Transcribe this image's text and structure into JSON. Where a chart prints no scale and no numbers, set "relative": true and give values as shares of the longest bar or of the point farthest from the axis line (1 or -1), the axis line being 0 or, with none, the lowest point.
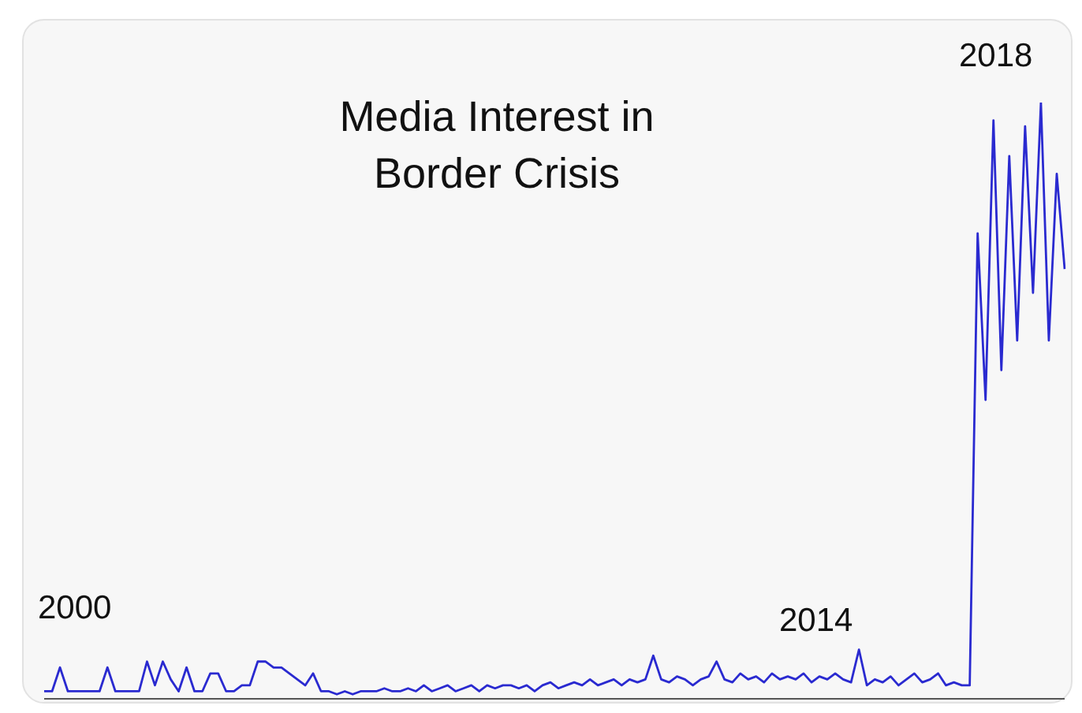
{
  "chart_data": {
    "type": "line",
    "title": "Media Interest in Border Crisis",
    "relative": true,
    "annotations": [
      "2000",
      "2014",
      "2018"
    ],
    "categories": [
      null,
      null,
      null,
      null,
      null,
      null,
      null,
      null,
      null,
      null,
      null,
      null,
      null,
      null,
      null,
      null,
      null,
      null,
      null,
      null,
      null,
      null,
      null,
      null,
      null,
      null,
      null,
      null,
      null,
      null,
      null,
      null,
      null,
      null,
      null,
      null,
      null,
      null,
      null,
      null,
      null,
      null,
      null,
      null,
      null,
      null,
      null,
      null,
      null,
      null,
      null,
      null,
      null,
      null,
      null,
      null,
      null,
      null,
      null,
      null,
      null,
      null,
      null,
      null,
      null,
      null,
      null,
      null,
      null,
      null,
      null,
      null,
      null,
      null,
      null,
      null,
      null,
      null,
      null,
      null,
      null,
      null,
      null,
      null,
      null,
      null,
      null,
      null,
      null,
      null,
      null,
      null,
      null,
      null,
      null,
      null,
      null,
      null,
      null,
      null,
      null,
      null,
      null,
      null,
      null,
      null,
      null,
      null,
      null,
      null,
      null,
      null,
      null,
      null,
      null,
      null,
      null,
      null,
      null,
      null,
      null,
      null,
      null,
      null,
      null,
      null,
      null,
      null,
      null,
      null
    ],
    "series": [
      {
        "color": "#2a2ad0",
        "values": [
          0.01,
          0.01,
          0.05,
          0.01,
          0.01,
          0.01,
          0.01,
          0.01,
          0.05,
          0.01,
          0.01,
          0.01,
          0.01,
          0.06,
          0.02,
          0.06,
          0.03,
          0.01,
          0.05,
          0.01,
          0.01,
          0.04,
          0.04,
          0.01,
          0.01,
          0.02,
          0.02,
          0.06,
          0.06,
          0.05,
          0.05,
          0.04,
          0.03,
          0.02,
          0.04,
          0.01,
          0.01,
          0.005,
          0.01,
          0.005,
          0.01,
          0.01,
          0.01,
          0.015,
          0.01,
          0.01,
          0.015,
          0.01,
          0.02,
          0.01,
          0.015,
          0.02,
          0.01,
          0.015,
          0.02,
          0.01,
          0.02,
          0.015,
          0.02,
          0.02,
          0.015,
          0.02,
          0.01,
          0.02,
          0.025,
          0.015,
          0.02,
          0.025,
          0.02,
          0.03,
          0.02,
          0.025,
          0.03,
          0.02,
          0.03,
          0.025,
          0.03,
          0.07,
          0.03,
          0.025,
          0.035,
          0.03,
          0.02,
          0.03,
          0.035,
          0.06,
          0.03,
          0.025,
          0.04,
          0.03,
          0.035,
          0.025,
          0.04,
          0.03,
          0.035,
          0.03,
          0.04,
          0.025,
          0.035,
          0.03,
          0.04,
          0.03,
          0.025,
          0.08,
          0.02,
          0.03,
          0.025,
          0.035,
          0.02,
          0.03,
          0.04,
          0.025,
          0.03,
          0.04,
          0.02,
          0.025,
          0.02,
          0.02,
          0.78,
          0.5,
          0.97,
          0.55,
          0.91,
          0.6,
          0.96,
          0.68,
          1,
          0.6,
          0.88,
          0.72
        ]
      }
    ]
  }
}
